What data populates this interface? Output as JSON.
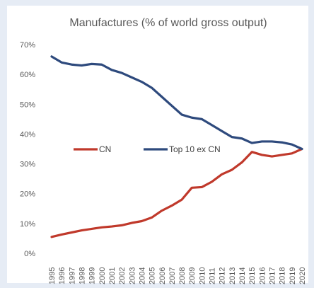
{
  "chart_data": {
    "type": "line",
    "title": "Manufactures (% of world gross output)",
    "xlabel": "",
    "ylabel": "",
    "ylim": [
      0,
      70
    ],
    "yticks": [
      "0%",
      "10%",
      "20%",
      "30%",
      "40%",
      "50%",
      "60%",
      "70%"
    ],
    "x": [
      "1995",
      "1996",
      "1997",
      "1998",
      "1999",
      "2000",
      "2001",
      "2002",
      "2003",
      "2004",
      "2005",
      "2006",
      "2007",
      "2008",
      "2009",
      "2010",
      "2011",
      "2012",
      "2013",
      "2014",
      "2015",
      "2016",
      "2017",
      "2018",
      "2019",
      "2020"
    ],
    "series": [
      {
        "name": "CN",
        "color": "#c0392b",
        "values": [
          5.5,
          6.3,
          7.0,
          7.7,
          8.2,
          8.7,
          9.0,
          9.4,
          10.2,
          10.8,
          12.0,
          14.3,
          16.0,
          18.0,
          22.0,
          22.2,
          24.0,
          26.5,
          28.0,
          30.5,
          34.0,
          33.0,
          32.5,
          33.0,
          33.5,
          35.0
        ]
      },
      {
        "name": "Top  10 ex CN",
        "color": "#2e4a7d",
        "values": [
          66.0,
          64.0,
          63.3,
          63.0,
          63.5,
          63.3,
          61.5,
          60.5,
          59.0,
          57.5,
          55.5,
          52.5,
          49.5,
          46.5,
          45.5,
          45.0,
          43.0,
          41.0,
          39.0,
          38.5,
          37.0,
          37.5,
          37.5,
          37.2,
          36.5,
          35.0
        ]
      }
    ],
    "legend_position": "center"
  }
}
